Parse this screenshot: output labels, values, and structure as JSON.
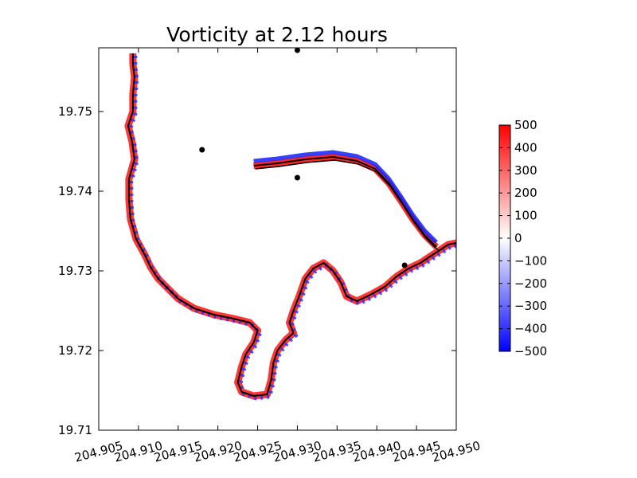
{
  "chart_data": {
    "type": "heatmap",
    "title": "Vorticity at 2.12 hours",
    "xlabel": "",
    "ylabel": "",
    "xlim": [
      204.905,
      204.95
    ],
    "ylim": [
      19.71,
      19.758
    ],
    "x_ticks": [
      "204.905",
      "204.910",
      "204.915",
      "204.920",
      "204.925",
      "204.930",
      "204.935",
      "204.940",
      "204.945",
      "204.950"
    ],
    "y_ticks": [
      "19.71",
      "19.72",
      "19.73",
      "19.74",
      "19.75"
    ],
    "colorbar": {
      "range": [
        -500,
        500
      ],
      "ticks": [
        "500",
        "400",
        "300",
        "200",
        "100",
        "0",
        "−100",
        "−200",
        "−300",
        "−400",
        "−500"
      ],
      "colors": [
        "#0000ff",
        "#ffffff",
        "#ff0000"
      ]
    },
    "markers": [
      {
        "x": 204.93,
        "y": 19.7577
      },
      {
        "x": 204.918,
        "y": 19.7452
      },
      {
        "x": 204.93,
        "y": 19.7417
      },
      {
        "x": 204.9435,
        "y": 19.7307
      }
    ],
    "shoreline": [
      [
        204.9093,
        19.7573
      ],
      [
        204.9093,
        19.756
      ],
      [
        204.9095,
        19.7543
      ],
      [
        204.9093,
        19.7522
      ],
      [
        204.9093,
        19.75
      ],
      [
        204.9087,
        19.7482
      ],
      [
        204.9092,
        19.7462
      ],
      [
        204.9095,
        19.744
      ],
      [
        204.9088,
        19.7415
      ],
      [
        204.9088,
        19.739
      ],
      [
        204.909,
        19.7365
      ],
      [
        204.9097,
        19.734
      ],
      [
        204.9108,
        19.732
      ],
      [
        204.9115,
        19.7305
      ],
      [
        204.9125,
        19.729
      ],
      [
        204.9137,
        19.7278
      ],
      [
        204.915,
        19.7265
      ],
      [
        204.917,
        19.7253
      ],
      [
        204.9195,
        19.7245
      ],
      [
        204.922,
        19.724
      ],
      [
        204.924,
        19.7235
      ],
      [
        204.925,
        19.7225
      ],
      [
        204.9245,
        19.721
      ],
      [
        204.9235,
        19.7195
      ],
      [
        204.923,
        19.718
      ],
      [
        204.9225,
        19.716
      ],
      [
        204.923,
        19.7148
      ],
      [
        204.9245,
        19.7143
      ],
      [
        204.9262,
        19.7145
      ],
      [
        204.9267,
        19.7163
      ],
      [
        204.927,
        19.7185
      ],
      [
        204.9275,
        19.72
      ],
      [
        204.9285,
        19.7213
      ],
      [
        204.9295,
        19.7222
      ],
      [
        204.929,
        19.7235
      ],
      [
        204.9295,
        19.725
      ],
      [
        204.9303,
        19.727
      ],
      [
        204.931,
        19.729
      ],
      [
        204.932,
        19.7303
      ],
      [
        204.9333,
        19.731
      ],
      [
        204.9345,
        19.73
      ],
      [
        204.9355,
        19.7285
      ],
      [
        204.9362,
        19.7268
      ],
      [
        204.9375,
        19.7262
      ],
      [
        204.9392,
        19.727
      ],
      [
        204.941,
        19.728
      ],
      [
        204.9425,
        19.7293
      ],
      [
        204.944,
        19.7303
      ],
      [
        204.9455,
        19.731
      ],
      [
        204.947,
        19.732
      ],
      [
        204.949,
        19.7333
      ],
      [
        204.95,
        19.7335
      ]
    ],
    "breakwater": [
      [
        204.9245,
        19.7432
      ],
      [
        204.9275,
        19.7435
      ],
      [
        204.931,
        19.744
      ],
      [
        204.9345,
        19.7443
      ],
      [
        204.9375,
        19.7438
      ],
      [
        204.9398,
        19.7428
      ],
      [
        204.9415,
        19.741
      ],
      [
        204.943,
        19.7388
      ],
      [
        204.9445,
        19.7365
      ],
      [
        204.946,
        19.7345
      ],
      [
        204.9475,
        19.733
      ]
    ]
  }
}
